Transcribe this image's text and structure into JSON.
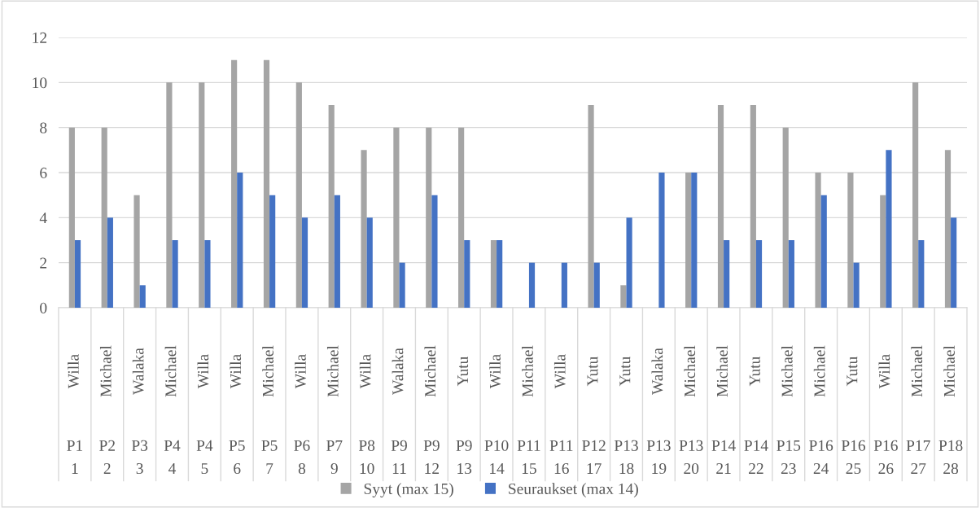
{
  "chart_data": {
    "type": "bar",
    "categories": [
      "Willa\nP1\n1",
      "Michael\nP2\n2",
      "Walaka\nP3\n3",
      "Michael\nP4\n4",
      "Willa\nP4\n5",
      "Willa\nP5\n6",
      "Michael\nP5\n7",
      "Willa\nP6\n8",
      "Michael\nP7\n9",
      "Willa\nP8\n10",
      "Walaka\nP9\n11",
      "Michael\nP9\n12",
      "Yutu\nP9\n13",
      "Willa\nP10\n14",
      "Michael\nP11\n15",
      "Willa\nP11\n16",
      "Yutu\nP12\n17",
      "Yutu\nP13\n18",
      "Walaka\nP13\n19",
      "Michael\nP13\n20",
      "Michael\nP14\n21",
      "Yutu\nP14\n22",
      "Michael\nP15\n23",
      "Michael\nP16\n24",
      "Yutu\nP16\n25",
      "Willa\nP16\n26",
      "Michael\nP17\n27",
      "Michael\nP18\n28"
    ],
    "series": [
      {
        "name": "Syyt (max 15)",
        "color": "#a5a5a5",
        "values": [
          8,
          8,
          5,
          10,
          10,
          11,
          11,
          10,
          9,
          7,
          8,
          8,
          8,
          3,
          0,
          0,
          9,
          1,
          0,
          6,
          9,
          9,
          8,
          6,
          6,
          5,
          10,
          7
        ]
      },
      {
        "name": "Seuraukset (max 14)",
        "color": "#4472c4",
        "values": [
          3,
          4,
          1,
          3,
          3,
          6,
          5,
          4,
          5,
          4,
          2,
          5,
          3,
          3,
          2,
          2,
          2,
          4,
          6,
          6,
          3,
          3,
          3,
          5,
          2,
          7,
          3,
          4
        ]
      }
    ],
    "ylim": [
      0,
      12
    ],
    "yticks": [
      0,
      2,
      4,
      6,
      8,
      10,
      12
    ],
    "grid": "y",
    "legend": "bottom"
  }
}
